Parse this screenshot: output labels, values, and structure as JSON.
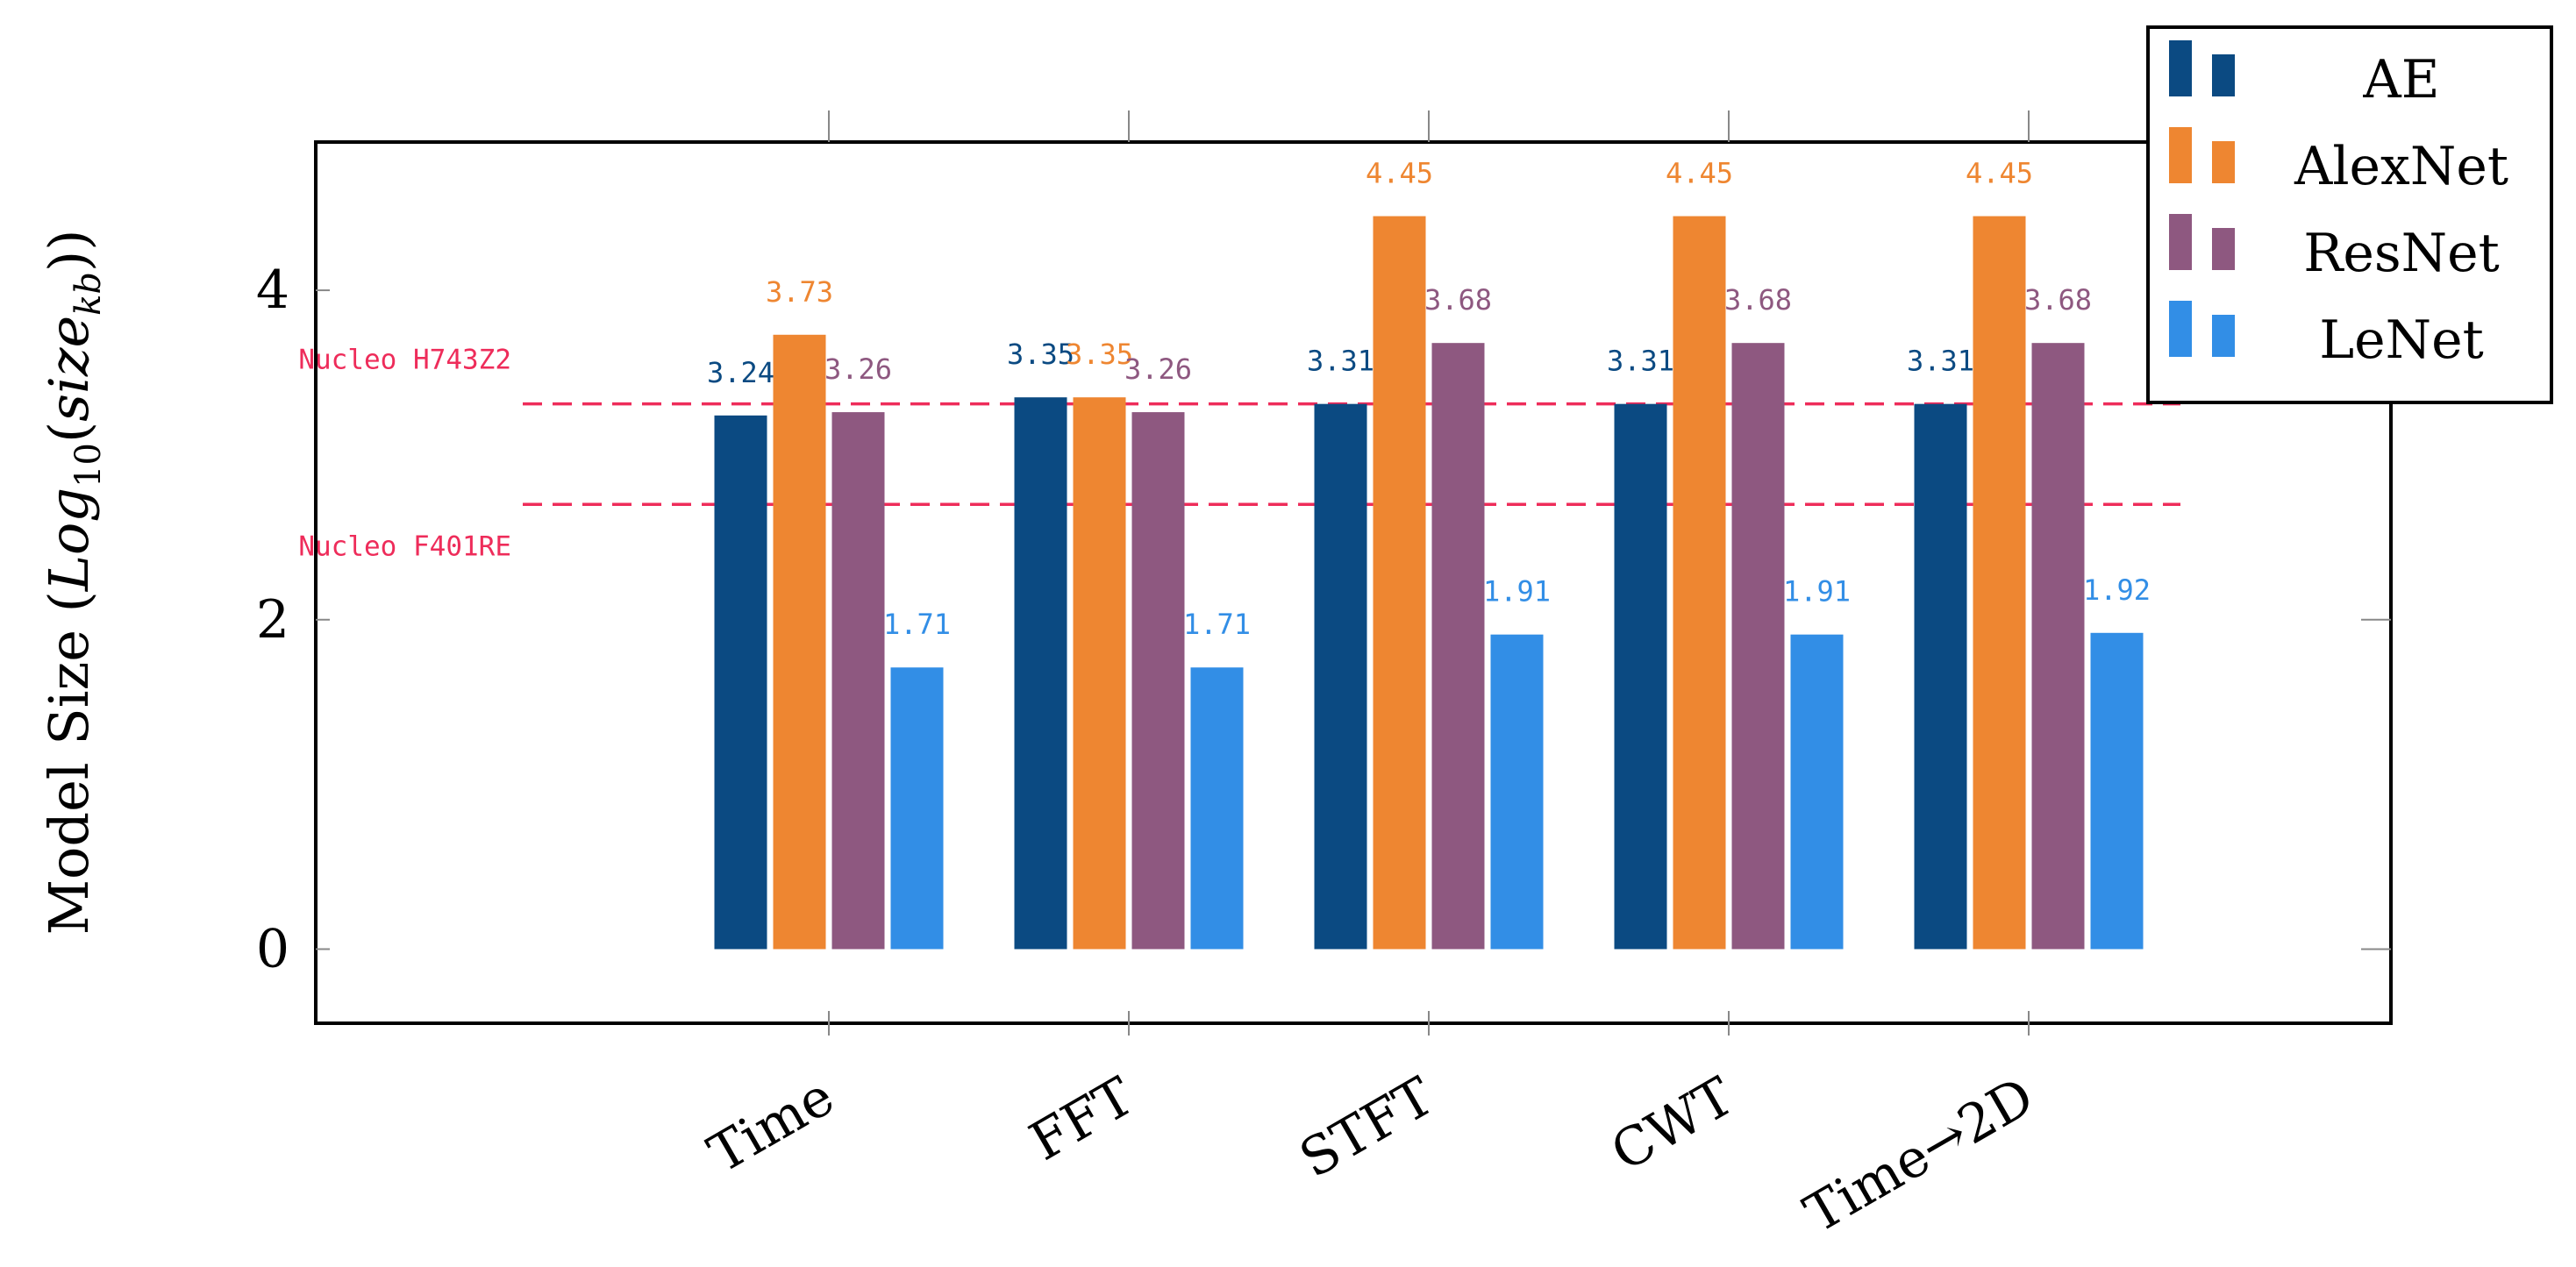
{
  "chart_data": {
    "type": "bar",
    "title": "",
    "ylabel_main": "Model Size (",
    "ylabel_log": "Log",
    "ylabel_base": "10",
    "ylabel_paren_open": "(",
    "ylabel_size": "size",
    "ylabel_sub": "kb",
    "ylabel_close": "))",
    "xlabel": "",
    "ylim": [
      -0.45,
      4.9
    ],
    "yticks": [
      0,
      2,
      4
    ],
    "ytick_labels": [
      "0",
      "2",
      "4"
    ],
    "categories": [
      "Time",
      "FFT",
      "STFT",
      "CWT",
      "Time→2D"
    ],
    "series": [
      {
        "name": "AE",
        "color": "#0b4a82",
        "values": [
          3.24,
          3.35,
          3.31,
          3.31,
          3.31
        ],
        "labels": [
          "3.24",
          "3.35",
          "3.31",
          "3.31",
          "3.31"
        ]
      },
      {
        "name": "AlexNet",
        "color": "#ee8631",
        "values": [
          3.73,
          3.35,
          4.45,
          4.45,
          4.45
        ],
        "labels": [
          "3.73",
          "3.35",
          "4.45",
          "4.45",
          "4.45"
        ]
      },
      {
        "name": "ResNet",
        "color": "#8e5880",
        "values": [
          3.26,
          3.26,
          3.68,
          3.68,
          3.68
        ],
        "labels": [
          "3.26",
          "3.26",
          "3.68",
          "3.68",
          "3.68"
        ]
      },
      {
        "name": "LeNet",
        "color": "#328ee6",
        "values": [
          1.71,
          1.71,
          1.91,
          1.91,
          1.92
        ],
        "labels": [
          "1.71",
          "1.71",
          "1.91",
          "1.91",
          "1.92"
        ]
      }
    ],
    "reference_lines": [
      {
        "name": "Nucleo H743Z2",
        "value": 3.31,
        "color": "#ee2c5a"
      },
      {
        "name": "Nucleo F401RE",
        "value": 2.7,
        "color": "#ee2c5a"
      }
    ],
    "legend": {
      "position": "top-right",
      "entries": [
        "AE",
        "AlexNet",
        "ResNet",
        "LeNet"
      ]
    },
    "grid": false
  }
}
